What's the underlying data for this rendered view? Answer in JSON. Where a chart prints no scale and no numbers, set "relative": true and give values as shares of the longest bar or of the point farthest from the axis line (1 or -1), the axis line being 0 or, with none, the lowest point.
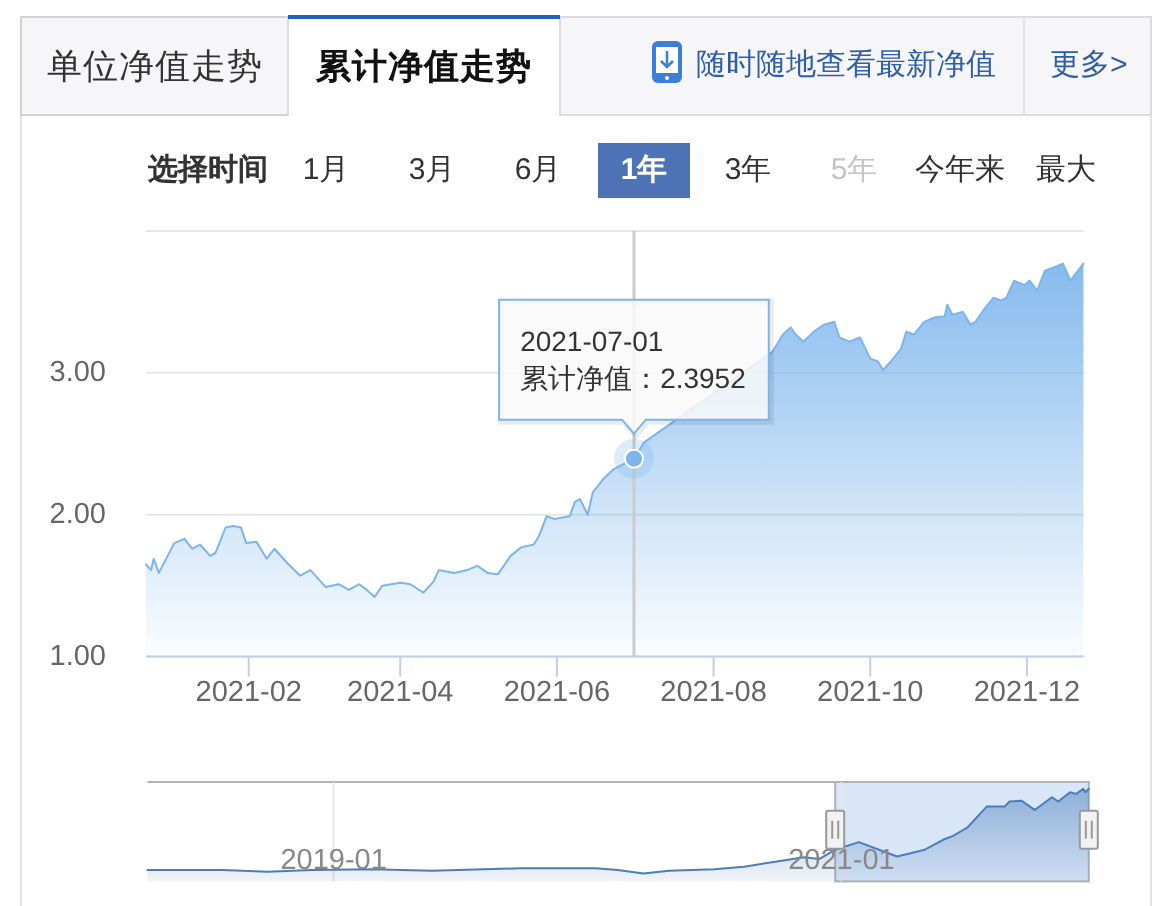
{
  "chart_data": [
    {
      "type": "other",
      "annotations": [
        "单位净值走势",
        "累计净值走势",
        "随时随地查看最新净值",
        "更多>",
        "选择时间",
        "1月",
        "3月",
        "6月",
        "1年",
        "3年",
        "5年",
        "今年来",
        "最大"
      ]
    },
    {
      "type": "area",
      "x": [
        "2020-12-23",
        "2020-12-25",
        "2020-12-26",
        "2020-12-28",
        "2021-01-03",
        "2021-01-07",
        "2021-01-10",
        "2021-01-13",
        "2021-01-17",
        "2021-01-19",
        "2021-01-23",
        "2021-01-26",
        "2021-01-29",
        "2021-01-31",
        "2021-02-04",
        "2021-02-08",
        "2021-02-11",
        "2021-02-16",
        "2021-02-21",
        "2021-02-25",
        "2021-03-03",
        "2021-03-08",
        "2021-03-12",
        "2021-03-16",
        "2021-03-19",
        "2021-03-22",
        "2021-03-25",
        "2021-04-01",
        "2021-04-05",
        "2021-04-10",
        "2021-04-14",
        "2021-04-16",
        "2021-04-22",
        "2021-04-27",
        "2021-05-01",
        "2021-05-05",
        "2021-05-09",
        "2021-05-14",
        "2021-05-18",
        "2021-05-23",
        "2021-05-25",
        "2021-05-28",
        "2021-05-31",
        "2021-06-06",
        "2021-06-08",
        "2021-06-10",
        "2021-06-13",
        "2021-06-15",
        "2021-06-19",
        "2021-06-23",
        "2021-07-01",
        "2021-07-05",
        "2021-08-24",
        "2021-08-28",
        "2021-08-31",
        "2021-09-02",
        "2021-09-05",
        "2021-09-09",
        "2021-09-13",
        "2021-09-17",
        "2021-09-19",
        "2021-09-23",
        "2021-09-27",
        "2021-10-01",
        "2021-10-04",
        "2021-10-06",
        "2021-10-09",
        "2021-10-13",
        "2021-10-15",
        "2021-10-18",
        "2021-10-22",
        "2021-10-26",
        "2021-10-30",
        "2021-10-31",
        "2021-11-02",
        "2021-11-06",
        "2021-11-09",
        "2021-11-11",
        "2021-11-14",
        "2021-11-18",
        "2021-11-21",
        "2021-11-23",
        "2021-11-26",
        "2021-11-30",
        "2021-12-02",
        "2021-12-05",
        "2021-12-08",
        "2021-12-11",
        "2021-12-15",
        "2021-12-18",
        "2021-12-20",
        "2021-12-23"
      ],
      "series": [
        {
          "color": "#7cb5ec",
          "values": [
            1.65,
            1.61,
            1.69,
            1.59,
            1.8,
            1.83,
            1.76,
            1.79,
            1.71,
            1.73,
            1.91,
            1.92,
            1.91,
            1.8,
            1.81,
            1.69,
            1.76,
            1.66,
            1.57,
            1.61,
            1.49,
            1.51,
            1.47,
            1.51,
            1.47,
            1.42,
            1.5,
            1.52,
            1.51,
            1.45,
            1.53,
            1.61,
            1.59,
            1.61,
            1.64,
            1.59,
            1.58,
            1.71,
            1.77,
            1.79,
            1.85,
            1.99,
            1.97,
            1.99,
            2.09,
            2.11,
            2.0,
            2.16,
            2.25,
            2.32,
            2.3952,
            2.51,
            3.15,
            3.27,
            3.32,
            3.27,
            3.22,
            3.29,
            3.34,
            3.36,
            3.25,
            3.22,
            3.25,
            3.1,
            3.08,
            3.02,
            3.08,
            3.17,
            3.29,
            3.27,
            3.36,
            3.39,
            3.4,
            3.48,
            3.41,
            3.43,
            3.34,
            3.36,
            3.44,
            3.53,
            3.51,
            3.53,
            3.65,
            3.62,
            3.65,
            3.58,
            3.72,
            3.74,
            3.77,
            3.65,
            3.7,
            3.77
          ]
        }
      ],
      "xlim": [
        "2020-12-23",
        "2021-12-23"
      ],
      "xticks": [
        "2021-02",
        "2021-04",
        "2021-06",
        "2021-08",
        "2021-10",
        "2021-12"
      ],
      "ylim": [
        1,
        4
      ],
      "yticks": [
        {
          "value": 1,
          "label": "1.00"
        },
        {
          "value": 2,
          "label": "2.00"
        },
        {
          "value": 3,
          "label": "3.00"
        },
        {
          "value": 4,
          "label": null
        }
      ],
      "grid": "y",
      "ref_lines": [
        {
          "axis": "x",
          "value": "2021-07-01",
          "color": "#cccccc"
        }
      ],
      "annotations": [
        {
          "text": "2021-07-01\n累计净值：2.3952",
          "x": "2021-07-01",
          "y": 2.3952
        }
      ]
    },
    {
      "type": "area",
      "relative": true,
      "x": [
        "2018-04-08",
        "2018-07-25",
        "2018-09-28",
        "2018-12-01",
        "2019-02-25",
        "2019-05-22",
        "2019-09-27",
        "2020-01-13",
        "2020-02-14",
        "2020-03-22",
        "2020-04-28",
        "2020-07-02",
        "2020-08-14",
        "2020-10-07",
        "2020-11-08",
        "2020-11-30",
        "2020-12-23",
        "2021-01-26",
        "2021-03-22",
        "2021-05-01",
        "2021-05-28",
        "2021-06-10",
        "2021-07-01",
        "2021-07-29",
        "2021-08-24",
        "2021-08-31",
        "2021-09-17",
        "2021-10-06",
        "2021-10-31",
        "2021-11-09",
        "2021-11-26",
        "2021-12-05",
        "2021-12-15",
        "2021-12-18",
        "2021-12-23"
      ],
      "series": [
        {
          "color": "#4a7ebb",
          "values": [
            0.04,
            0.04,
            0.02,
            0.04,
            0.05,
            0.03,
            0.06,
            0.06,
            0.04,
            0,
            0.03,
            0.05,
            0.08,
            0.15,
            0.19,
            0.17,
            0.28,
            0.37,
            0.2,
            0.28,
            0.4,
            0.44,
            0.54,
            0.79,
            0.79,
            0.85,
            0.86,
            0.75,
            0.9,
            0.85,
            0.96,
            0.94,
            1,
            0.96,
            1
          ]
        }
      ],
      "xlim": [
        "2018-04-08",
        "2021-12-23"
      ],
      "xticks": [
        "2019-01",
        "2021-01"
      ],
      "grid": "x",
      "bands": [
        {
          "axis": "x",
          "from": "2020-12-23",
          "to": "2021-12-23",
          "color": "#d9e6f7"
        }
      ]
    }
  ]
}
